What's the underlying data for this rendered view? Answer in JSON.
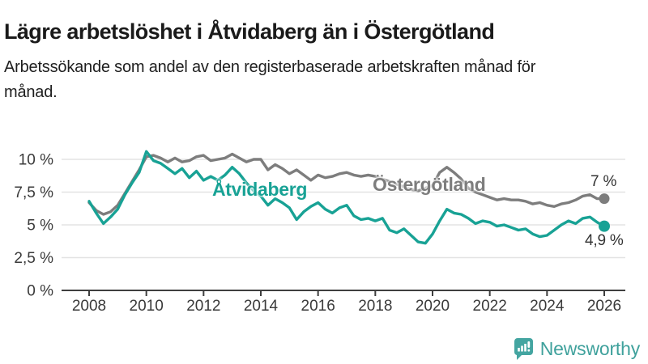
{
  "page": {
    "title": "Lägre arbetslöshet i Åtvidaberg än i Östergötland",
    "subtitle": "Arbetssökande som andel av den registerbaserade arbetskraften månad för månad."
  },
  "branding": {
    "name": "Newsworthy",
    "color": "#3fa19c"
  },
  "colors": {
    "atvidaberg": "#18a295",
    "ostergotland": "#7d7d7d",
    "gridline": "#e3e3e3",
    "axis": "#3f3f3f",
    "tick_text": "#3a3a3a",
    "annotation_text": "#333333"
  },
  "chart_data": {
    "type": "line",
    "title": "Lägre arbetslöshet i Åtvidaberg än i Östergötland",
    "subtitle": "Arbetssökande som andel av den registerbaserade arbetskraften månad för månad.",
    "unit": "%",
    "xlim": [
      2007.1,
      2026.75
    ],
    "ylim": [
      0,
      11.5
    ],
    "grid": true,
    "legend_position": "inline-labels",
    "x_tick_labels": [
      "2008",
      "2010",
      "2012",
      "2014",
      "2016",
      "2018",
      "2020",
      "2022",
      "2024",
      "2026"
    ],
    "x_ticks": [
      2008,
      2010,
      2012,
      2014,
      2016,
      2018,
      2020,
      2022,
      2024,
      2026
    ],
    "y_ticks": [
      0,
      2.5,
      5,
      7.5,
      10
    ],
    "y_tick_labels": [
      "0 %",
      "2,5 %",
      "5 %",
      "7,5 %",
      "10 %"
    ],
    "series": [
      {
        "name": "Östergötland",
        "color": "#7d7d7d",
        "end_label": "7 %",
        "x_start": 2008,
        "x_step": 0.25,
        "values": [
          6.7,
          6.1,
          5.8,
          6.0,
          6.5,
          7.4,
          8.3,
          9.2,
          10.2,
          10.3,
          10.1,
          9.8,
          10.1,
          9.8,
          9.9,
          10.2,
          10.3,
          9.9,
          10.0,
          10.1,
          10.4,
          10.1,
          9.8,
          10.0,
          10.0,
          9.2,
          9.6,
          9.3,
          8.9,
          9.2,
          8.8,
          8.4,
          8.8,
          8.6,
          8.7,
          8.9,
          9.0,
          8.8,
          8.7,
          8.8,
          8.7,
          8.5,
          8.3,
          8.1,
          7.9,
          7.7,
          7.6,
          7.8,
          8.0,
          9.0,
          9.4,
          9.0,
          8.5,
          7.8,
          7.5,
          7.3,
          7.1,
          6.9,
          7.0,
          6.9,
          6.9,
          6.8,
          6.6,
          6.7,
          6.5,
          6.4,
          6.6,
          6.7,
          6.9,
          7.2,
          7.3,
          7.0,
          7.0
        ]
      },
      {
        "name": "Åtvidaberg",
        "color": "#18a295",
        "end_label": "4,9 %",
        "x_start": 2008,
        "x_step": 0.25,
        "values": [
          6.8,
          5.9,
          5.1,
          5.6,
          6.2,
          7.3,
          8.2,
          9.0,
          10.6,
          9.9,
          9.7,
          9.3,
          8.9,
          9.3,
          8.6,
          9.1,
          8.4,
          8.7,
          8.4,
          8.8,
          9.4,
          8.9,
          8.2,
          7.6,
          7.2,
          6.5,
          7.0,
          6.7,
          6.3,
          5.4,
          6.0,
          6.4,
          6.7,
          6.2,
          5.9,
          6.3,
          6.5,
          5.7,
          5.4,
          5.5,
          5.3,
          5.5,
          4.6,
          4.4,
          4.7,
          4.2,
          3.7,
          3.6,
          4.3,
          5.3,
          6.2,
          5.9,
          5.8,
          5.5,
          5.1,
          5.3,
          5.2,
          4.9,
          5.0,
          4.8,
          4.6,
          4.7,
          4.3,
          4.1,
          4.2,
          4.6,
          5.0,
          5.3,
          5.1,
          5.5,
          5.6,
          5.2,
          4.9
        ]
      }
    ]
  }
}
